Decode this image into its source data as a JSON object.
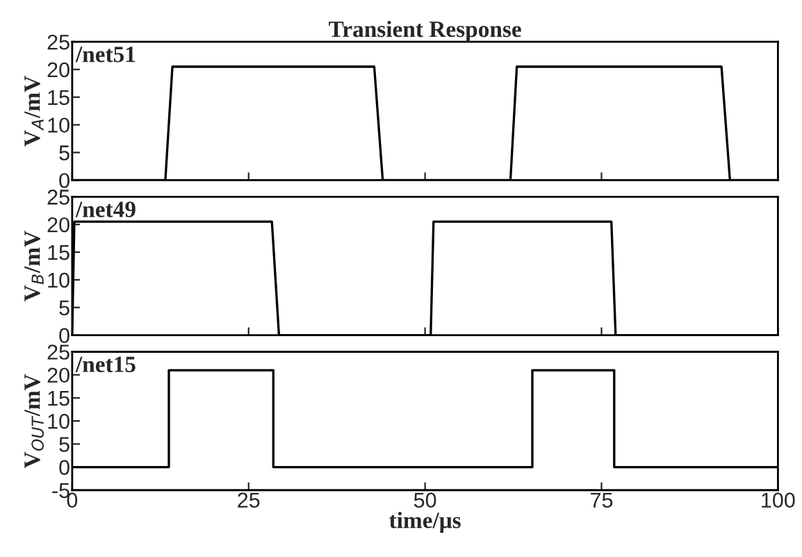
{
  "chart_data": [
    {
      "type": "line",
      "title": "Transient Response",
      "ylabel": "V$_{A}$/mV",
      "annotations": [
        "/net51"
      ],
      "series": [
        {
          "color": "#000000",
          "x": [
            0,
            13.2,
            14.2,
            42.8,
            44,
            62.1,
            63,
            92,
            93.2,
            100
          ],
          "values": [
            0,
            0,
            20.5,
            20.5,
            0,
            0,
            20.5,
            20.5,
            0,
            0
          ]
        }
      ],
      "xlim": [
        0,
        100
      ],
      "xticks": [
        0,
        25,
        50,
        75,
        100
      ],
      "ylim": [
        0,
        25
      ],
      "yticks": [
        0,
        5,
        10,
        15,
        20,
        25
      ],
      "tick_labels": "y",
      "grid": false
    },
    {
      "type": "line",
      "ylabel": "V$_{B}$/mV",
      "annotations": [
        "/net49"
      ],
      "series": [
        {
          "color": "#000000",
          "x": [
            0,
            0.3,
            28.3,
            29.3,
            50.8,
            51.2,
            76.4,
            77,
            100
          ],
          "values": [
            0,
            20.5,
            20.5,
            0,
            0,
            20.5,
            20.5,
            0,
            0
          ]
        }
      ],
      "xlim": [
        0,
        100
      ],
      "xticks": [
        0,
        25,
        50,
        75,
        100
      ],
      "ylim": [
        0,
        25
      ],
      "yticks": [
        0,
        5,
        10,
        15,
        20,
        25
      ],
      "tick_labels": "y",
      "grid": false
    },
    {
      "type": "line",
      "ylabel": "V$_{OUT}$/mV",
      "xlabel": "time/μs",
      "annotations": [
        "/net15"
      ],
      "series": [
        {
          "color": "#000000",
          "x": [
            0,
            13.7,
            13.7,
            28.5,
            28.5,
            65.2,
            65.2,
            76.8,
            76.8,
            100
          ],
          "values": [
            0,
            0,
            21,
            21,
            0,
            0,
            21,
            21,
            0,
            0
          ]
        }
      ],
      "xlim": [
        0,
        100
      ],
      "xticks": [
        0,
        25,
        50,
        75,
        100
      ],
      "ylim": [
        -5,
        25
      ],
      "yticks": [
        -5,
        0,
        5,
        10,
        15,
        20,
        25
      ],
      "grid": false
    }
  ]
}
